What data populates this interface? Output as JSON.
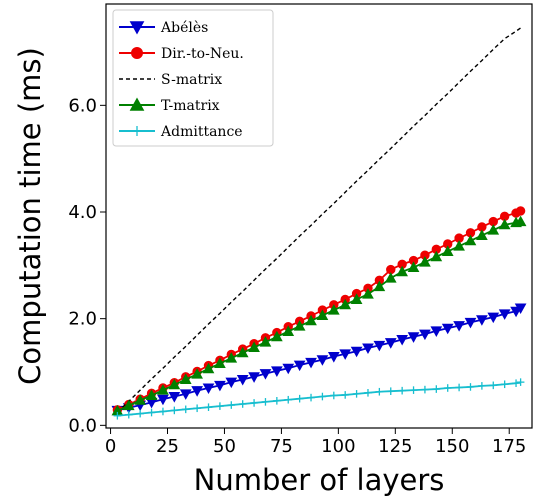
{
  "chart_data": {
    "type": "line",
    "xlabel": "Number of layers",
    "ylabel": "Computation time (ms)",
    "xlim": [
      -2,
      185
    ],
    "ylim": [
      -0.05,
      7.9
    ],
    "xticks": [
      0,
      25,
      50,
      75,
      100,
      125,
      150,
      175
    ],
    "yticks": [
      0.0,
      2.0,
      4.0,
      6.0
    ],
    "ytick_labels": [
      "0.0",
      "2.0",
      "4.0",
      "6.0"
    ],
    "grid": false,
    "legend_position": "top-left",
    "x": [
      3,
      8,
      13,
      18,
      23,
      28,
      33,
      38,
      43,
      48,
      53,
      58,
      63,
      68,
      73,
      78,
      83,
      88,
      93,
      98,
      103,
      108,
      113,
      118,
      123,
      128,
      133,
      138,
      143,
      148,
      153,
      158,
      163,
      168,
      173,
      178,
      180
    ],
    "series": [
      {
        "name": "Abélès",
        "color": "#0000cc",
        "marker": "triangle-down",
        "line": "solid",
        "values": [
          0.28,
          0.33,
          0.38,
          0.43,
          0.49,
          0.54,
          0.59,
          0.65,
          0.7,
          0.75,
          0.81,
          0.86,
          0.91,
          0.97,
          1.02,
          1.07,
          1.13,
          1.18,
          1.23,
          1.29,
          1.34,
          1.39,
          1.45,
          1.5,
          1.55,
          1.61,
          1.66,
          1.71,
          1.77,
          1.82,
          1.87,
          1.93,
          1.98,
          2.03,
          2.09,
          2.14,
          2.2
        ]
      },
      {
        "name": "Dir.-to-Neu.",
        "color": "#ee0000",
        "marker": "circle",
        "line": "solid",
        "values": [
          0.29,
          0.39,
          0.49,
          0.6,
          0.7,
          0.8,
          0.91,
          1.01,
          1.12,
          1.22,
          1.33,
          1.43,
          1.53,
          1.64,
          1.74,
          1.85,
          1.95,
          2.05,
          2.16,
          2.26,
          2.36,
          2.47,
          2.57,
          2.72,
          2.92,
          3.02,
          3.09,
          3.19,
          3.3,
          3.4,
          3.51,
          3.61,
          3.72,
          3.82,
          3.92,
          3.98,
          4.02
        ]
      },
      {
        "name": "S-matrix",
        "color": "#000000",
        "marker": "none",
        "line": "dashed",
        "values": [
          0.25,
          0.45,
          0.66,
          0.87,
          1.07,
          1.28,
          1.48,
          1.69,
          1.9,
          2.1,
          2.31,
          2.51,
          2.72,
          2.93,
          3.13,
          3.34,
          3.55,
          3.75,
          3.96,
          4.16,
          4.37,
          4.58,
          4.78,
          4.99,
          5.19,
          5.4,
          5.61,
          5.81,
          6.02,
          6.22,
          6.43,
          6.64,
          6.84,
          7.05,
          7.25,
          7.39,
          7.45
        ]
      },
      {
        "name": "T-matrix",
        "color": "#008000",
        "marker": "triangle-up",
        "line": "solid",
        "values": [
          0.27,
          0.37,
          0.47,
          0.56,
          0.66,
          0.76,
          0.86,
          0.96,
          1.06,
          1.16,
          1.26,
          1.36,
          1.46,
          1.56,
          1.66,
          1.76,
          1.86,
          1.96,
          2.06,
          2.16,
          2.26,
          2.36,
          2.46,
          2.6,
          2.76,
          2.88,
          2.96,
          3.06,
          3.16,
          3.26,
          3.36,
          3.46,
          3.56,
          3.66,
          3.76,
          3.8,
          3.82
        ]
      },
      {
        "name": "Admittance",
        "color": "#17becf",
        "marker": "plus",
        "line": "solid",
        "values": [
          0.18,
          0.2,
          0.22,
          0.24,
          0.26,
          0.28,
          0.3,
          0.32,
          0.34,
          0.36,
          0.38,
          0.4,
          0.42,
          0.44,
          0.46,
          0.48,
          0.5,
          0.52,
          0.54,
          0.56,
          0.57,
          0.59,
          0.61,
          0.63,
          0.64,
          0.65,
          0.66,
          0.67,
          0.68,
          0.7,
          0.71,
          0.72,
          0.74,
          0.75,
          0.77,
          0.79,
          0.81
        ]
      }
    ]
  }
}
